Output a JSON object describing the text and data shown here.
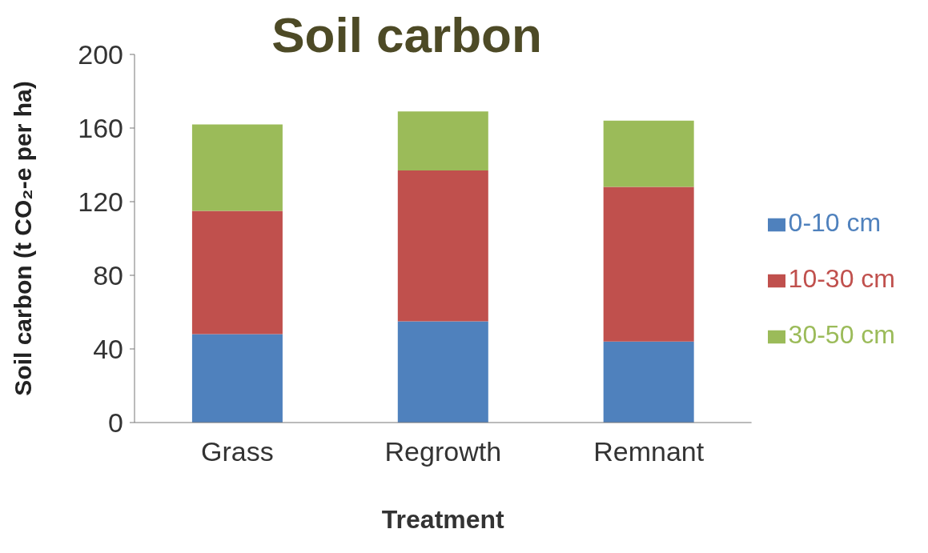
{
  "chart_data": {
    "type": "bar",
    "title": "Soil carbon",
    "xlabel": "Treatment",
    "ylabel": "Soil carbon  (t CO₂-e per ha)",
    "categories": [
      "Grass",
      "Regrowth",
      "Remnant"
    ],
    "stacked": true,
    "series": [
      {
        "name": "0-10 cm",
        "color": "#4f81bd",
        "values": [
          48,
          55,
          44
        ]
      },
      {
        "name": "10-30 cm",
        "color": "#c0504d",
        "values": [
          67,
          82,
          84
        ]
      },
      {
        "name": "30-50 cm",
        "color": "#9bbb59",
        "values": [
          47,
          32,
          36
        ]
      }
    ],
    "ylim": [
      0,
      200
    ],
    "yticks": [
      0,
      40,
      80,
      120,
      160,
      200
    ],
    "grid": false,
    "legend": "right"
  }
}
